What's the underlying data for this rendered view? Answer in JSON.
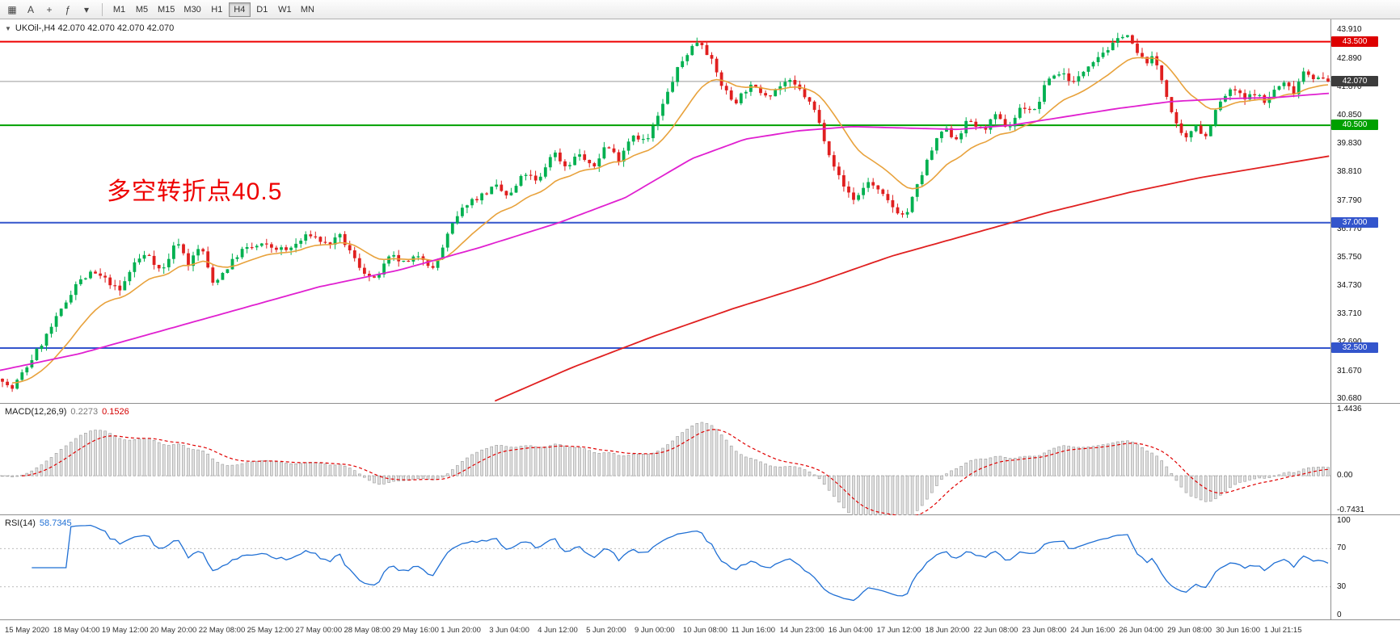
{
  "toolbar": {
    "icon_buttons": [
      {
        "name": "charts-grid-icon",
        "glyph": "▦"
      },
      {
        "name": "text-annotation-icon",
        "glyph": "A"
      },
      {
        "name": "crosshair-icon",
        "glyph": "+"
      },
      {
        "name": "indicator-list-icon",
        "glyph": "ƒ"
      },
      {
        "name": "dropdown-caret-icon",
        "glyph": "▾"
      }
    ],
    "timeframes": [
      {
        "label": "M1",
        "active": false
      },
      {
        "label": "M5",
        "active": false
      },
      {
        "label": "M15",
        "active": false
      },
      {
        "label": "M30",
        "active": false
      },
      {
        "label": "H1",
        "active": false
      },
      {
        "label": "H4",
        "active": true
      },
      {
        "label": "D1",
        "active": false
      },
      {
        "label": "W1",
        "active": false
      },
      {
        "label": "MN",
        "active": false
      }
    ]
  },
  "header": {
    "collapse_marker": "▼",
    "symbol_line": "UKOil-,H4 42.070 42.070 42.070 42.070"
  },
  "annotation": {
    "text": "多空转折点40.5",
    "color": "#ee0000"
  },
  "price_axis": {
    "ticks": [
      "43.910",
      "42.890",
      "41.870",
      "40.850",
      "39.830",
      "38.810",
      "37.790",
      "36.770",
      "35.750",
      "34.730",
      "33.710",
      "32.690",
      "31.670",
      "30.680"
    ],
    "badges": [
      {
        "text": "43.500",
        "color": "#dd0000",
        "price": 43.5
      },
      {
        "text": "42.070",
        "color": "#3c3c3c",
        "price": 42.07
      },
      {
        "text": "40.500",
        "color": "#00a000",
        "price": 40.5
      },
      {
        "text": "37.000",
        "color": "#3355cc",
        "price": 37.0
      },
      {
        "text": "32.500",
        "color": "#3355cc",
        "price": 32.5
      }
    ]
  },
  "hlines": [
    {
      "price": 43.5,
      "color": "#ee0000",
      "width": 2,
      "dash": ""
    },
    {
      "price": 42.07,
      "color": "#9a9a9a",
      "width": 1,
      "dash": ""
    },
    {
      "price": 40.5,
      "color": "#00a000",
      "width": 2,
      "dash": ""
    },
    {
      "price": 37.0,
      "color": "#3355cc",
      "width": 2,
      "dash": ""
    },
    {
      "price": 32.5,
      "color": "#3355cc",
      "width": 2,
      "dash": ""
    }
  ],
  "chart_data": {
    "type": "candlestick",
    "symbol": "UKOil-",
    "timeframe": "H4",
    "ohlc_display": {
      "open": "42.070",
      "high": "42.070",
      "low": "42.070",
      "close": "42.070"
    },
    "last_price": 42.07,
    "price_range": [
      30.5,
      44.3
    ],
    "candle_count": 272,
    "up_color": "#00b050",
    "down_color": "#e01f1f",
    "colors": {
      "ma_fast": "#e8a23c",
      "ma_mid": "#e020d0",
      "ma_slow": "#e02020",
      "macd_hist": "#e0e0e0",
      "macd_hist_stroke": "#9a9a9a",
      "macd_signal": "#e00000",
      "rsi_line": "#1f6fd4"
    },
    "close_waypoints": [
      [
        0.0,
        31.4
      ],
      [
        0.006,
        30.95
      ],
      [
        0.018,
        31.8
      ],
      [
        0.03,
        32.7
      ],
      [
        0.045,
        33.9
      ],
      [
        0.055,
        34.8
      ],
      [
        0.068,
        35.2
      ],
      [
        0.08,
        34.9
      ],
      [
        0.088,
        34.5
      ],
      [
        0.1,
        35.6
      ],
      [
        0.11,
        35.9
      ],
      [
        0.12,
        35.2
      ],
      [
        0.132,
        36.4
      ],
      [
        0.14,
        35.5
      ],
      [
        0.15,
        36.2
      ],
      [
        0.158,
        34.8
      ],
      [
        0.168,
        35.3
      ],
      [
        0.18,
        36.0
      ],
      [
        0.195,
        36.2
      ],
      [
        0.215,
        36.0
      ],
      [
        0.232,
        36.6
      ],
      [
        0.245,
        36.2
      ],
      [
        0.255,
        36.5
      ],
      [
        0.268,
        35.5
      ],
      [
        0.28,
        34.9
      ],
      [
        0.293,
        35.8
      ],
      [
        0.305,
        35.5
      ],
      [
        0.315,
        35.9
      ],
      [
        0.325,
        35.3
      ],
      [
        0.338,
        36.8
      ],
      [
        0.35,
        37.7
      ],
      [
        0.362,
        38.0
      ],
      [
        0.372,
        38.3
      ],
      [
        0.382,
        37.9
      ],
      [
        0.394,
        38.8
      ],
      [
        0.404,
        38.4
      ],
      [
        0.415,
        39.6
      ],
      [
        0.425,
        39.0
      ],
      [
        0.435,
        39.5
      ],
      [
        0.445,
        38.9
      ],
      [
        0.455,
        39.8
      ],
      [
        0.465,
        39.3
      ],
      [
        0.475,
        40.2
      ],
      [
        0.486,
        39.9
      ],
      [
        0.498,
        41.2
      ],
      [
        0.508,
        42.4
      ],
      [
        0.518,
        43.2
      ],
      [
        0.526,
        43.6
      ],
      [
        0.534,
        42.9
      ],
      [
        0.543,
        41.9
      ],
      [
        0.552,
        41.3
      ],
      [
        0.563,
        41.9
      ],
      [
        0.578,
        41.6
      ],
      [
        0.592,
        42.1
      ],
      [
        0.603,
        41.7
      ],
      [
        0.613,
        41.0
      ],
      [
        0.623,
        39.6
      ],
      [
        0.633,
        38.4
      ],
      [
        0.643,
        37.8
      ],
      [
        0.653,
        38.5
      ],
      [
        0.663,
        38.0
      ],
      [
        0.673,
        37.5
      ],
      [
        0.681,
        37.2
      ],
      [
        0.69,
        38.3
      ],
      [
        0.7,
        39.5
      ],
      [
        0.71,
        40.4
      ],
      [
        0.719,
        40.0
      ],
      [
        0.729,
        40.7
      ],
      [
        0.739,
        40.3
      ],
      [
        0.749,
        40.8
      ],
      [
        0.759,
        40.4
      ],
      [
        0.769,
        41.2
      ],
      [
        0.779,
        41.0
      ],
      [
        0.789,
        42.2
      ],
      [
        0.799,
        42.4
      ],
      [
        0.809,
        42.0
      ],
      [
        0.819,
        42.7
      ],
      [
        0.829,
        43.1
      ],
      [
        0.839,
        43.4
      ],
      [
        0.847,
        43.9
      ],
      [
        0.854,
        43.2
      ],
      [
        0.861,
        42.8
      ],
      [
        0.869,
        42.9
      ],
      [
        0.877,
        41.8
      ],
      [
        0.884,
        40.6
      ],
      [
        0.892,
        39.9
      ],
      [
        0.9,
        40.6
      ],
      [
        0.907,
        40.0
      ],
      [
        0.914,
        40.9
      ],
      [
        0.921,
        41.5
      ],
      [
        0.929,
        41.8
      ],
      [
        0.937,
        41.4
      ],
      [
        0.945,
        41.7
      ],
      [
        0.952,
        41.3
      ],
      [
        0.96,
        41.8
      ],
      [
        0.967,
        42.0
      ],
      [
        0.974,
        41.7
      ],
      [
        0.982,
        42.5
      ],
      [
        0.99,
        42.2
      ],
      [
        1.0,
        42.07
      ]
    ],
    "ma_magenta": [
      [
        0.0,
        31.7
      ],
      [
        0.06,
        32.3
      ],
      [
        0.12,
        33.1
      ],
      [
        0.18,
        33.9
      ],
      [
        0.24,
        34.7
      ],
      [
        0.3,
        35.3
      ],
      [
        0.36,
        36.1
      ],
      [
        0.42,
        37.0
      ],
      [
        0.47,
        37.9
      ],
      [
        0.52,
        39.3
      ],
      [
        0.56,
        40.0
      ],
      [
        0.6,
        40.3
      ],
      [
        0.64,
        40.45
      ],
      [
        0.68,
        40.4
      ],
      [
        0.72,
        40.35
      ],
      [
        0.76,
        40.5
      ],
      [
        0.8,
        40.8
      ],
      [
        0.84,
        41.1
      ],
      [
        0.88,
        41.35
      ],
      [
        0.92,
        41.45
      ],
      [
        0.96,
        41.5
      ],
      [
        1.0,
        41.65
      ]
    ],
    "ma_red": [
      [
        0.372,
        30.6
      ],
      [
        0.43,
        31.8
      ],
      [
        0.49,
        32.9
      ],
      [
        0.55,
        33.9
      ],
      [
        0.61,
        34.8
      ],
      [
        0.67,
        35.8
      ],
      [
        0.73,
        36.6
      ],
      [
        0.79,
        37.4
      ],
      [
        0.85,
        38.1
      ],
      [
        0.9,
        38.6
      ],
      [
        0.95,
        39.0
      ],
      [
        1.0,
        39.4
      ]
    ],
    "indicators": {
      "macd": {
        "label": "MACD(12,26,9)",
        "value_main": "0.2273",
        "value_signal": "0.1526",
        "axis": [
          "1.4436",
          "0.00",
          "-0.7431"
        ],
        "range": [
          -0.85,
          1.55
        ]
      },
      "rsi": {
        "label": "RSI(14)",
        "value": "58.7345",
        "axis": [
          "100",
          "70",
          "30",
          "0"
        ],
        "levels": [
          70,
          30
        ]
      }
    },
    "time_labels": [
      "15 May 2020",
      "18 May 04:00",
      "19 May 12:00",
      "20 May 20:00",
      "22 May 08:00",
      "25 May 12:00",
      "27 May 00:00",
      "28 May 08:00",
      "29 May 16:00",
      "1 Jun 20:00",
      "3 Jun 04:00",
      "4 Jun 12:00",
      "5 Jun 20:00",
      "9 Jun 00:00",
      "10 Jun 08:00",
      "11 Jun 16:00",
      "14 Jun 23:00",
      "16 Jun 04:00",
      "17 Jun 12:00",
      "18 Jun 20:00",
      "22 Jun 08:00",
      "23 Jun 08:00",
      "24 Jun 16:00",
      "26 Jun 04:00",
      "29 Jun 08:00",
      "30 Jun 16:00",
      "1 Jul 21:15"
    ]
  }
}
